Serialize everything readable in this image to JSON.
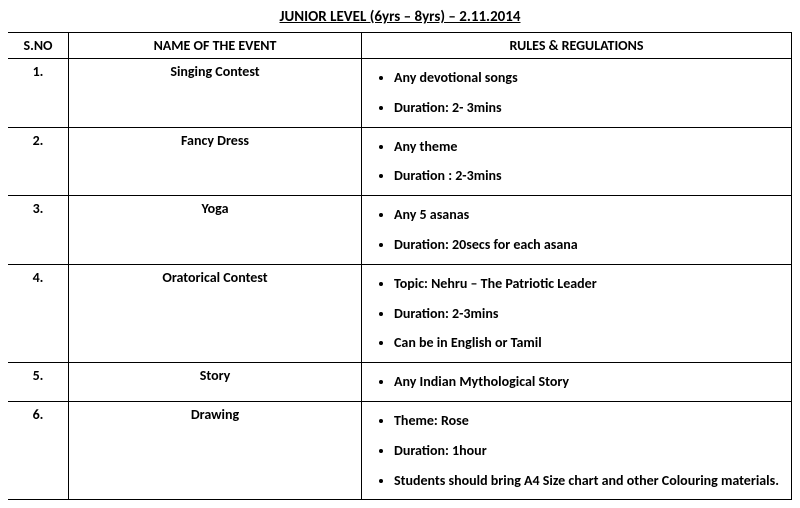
{
  "title": "JUNIOR LEVEL (6yrs – 8yrs) – 2.11.2014",
  "headers": {
    "sno": "S.NO",
    "event": "NAME OF THE EVENT",
    "rules": "RULES & REGULATIONS"
  },
  "rows": [
    {
      "sno": "1.",
      "event": "Singing Contest",
      "rules": [
        "Any devotional songs",
        "Duration: 2- 3mins"
      ]
    },
    {
      "sno": "2.",
      "event": "Fancy Dress",
      "rules": [
        "Any theme",
        "Duration : 2-3mins"
      ]
    },
    {
      "sno": "3.",
      "event": "Yoga",
      "rules": [
        "Any 5 asanas",
        "Duration: 20secs for each asana"
      ]
    },
    {
      "sno": "4.",
      "event": "Oratorical Contest",
      "rules": [
        "Topic: Nehru – The Patriotic Leader",
        "Duration: 2-3mins",
        "Can be in English or Tamil"
      ]
    },
    {
      "sno": "5.",
      "event": "Story",
      "rules": [
        "Any Indian Mythological Story"
      ]
    },
    {
      "sno": "6.",
      "event": "Drawing",
      "rules": [
        "Theme: Rose",
        "Duration: 1hour",
        "Students should bring A4 Size chart and other Colouring materials."
      ]
    }
  ]
}
